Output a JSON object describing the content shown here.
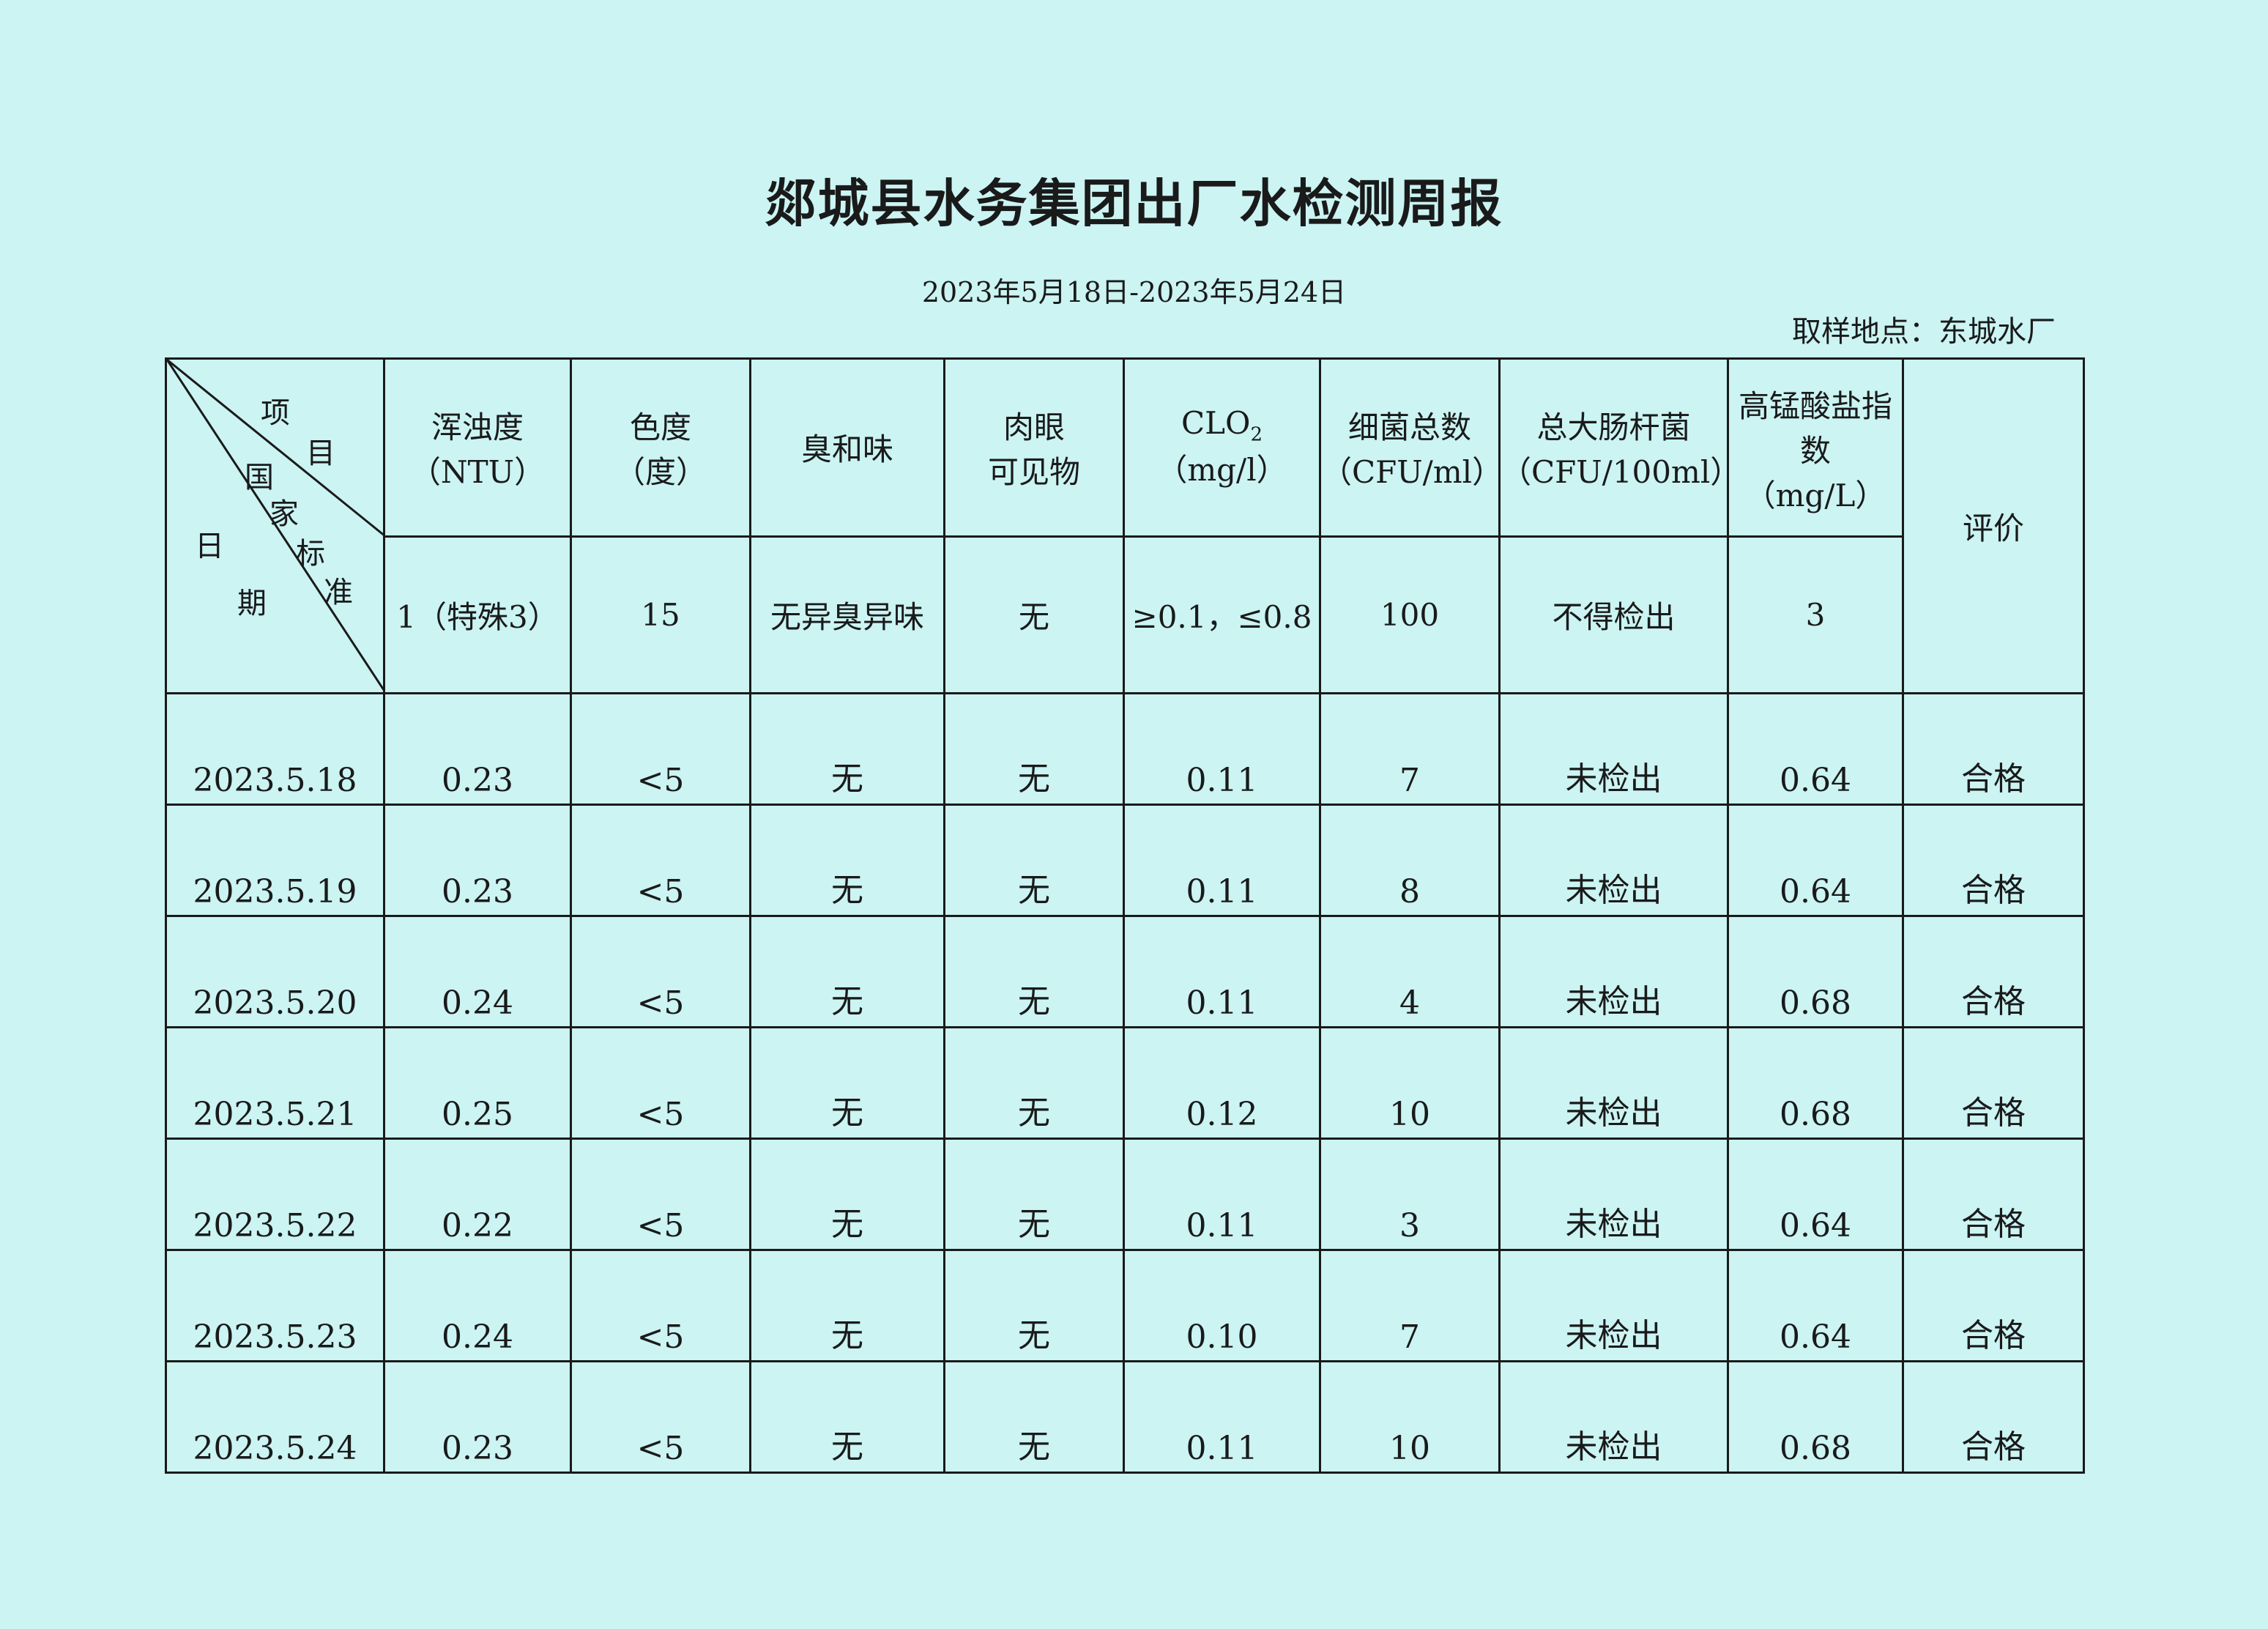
{
  "title": "郯城县水务集团出厂水检测周报",
  "subtitle": "2023年5月18日-2023年5月24日",
  "location": "取样地点：东城水厂",
  "corner": {
    "item1": "项",
    "item2": "目",
    "std1": "国",
    "std2": "家",
    "std3": "标",
    "std4": "准",
    "date1": "日",
    "date2": "期"
  },
  "columns": [
    {
      "name": "浑浊度",
      "unit": "（NTU）",
      "standard": "1（特殊3）"
    },
    {
      "name": "色度",
      "unit": "（度）",
      "standard": "15"
    },
    {
      "name": "臭和味",
      "unit": "",
      "standard": "无异臭异味"
    },
    {
      "name": "肉眼",
      "unit": "可见物",
      "standard": "无"
    },
    {
      "name": "CLO",
      "sub": "2",
      "unit": "（mg/l）",
      "standard": "≥0.1，≤0.8"
    },
    {
      "name": "细菌总数",
      "unit": "（CFU/ml）",
      "standard": "100"
    },
    {
      "name": "总大肠杆菌",
      "unit": "（CFU/100ml）",
      "standard": "不得检出"
    },
    {
      "name": "高锰酸盐指",
      "unit": "数",
      "unit2": "（mg/L）",
      "standard": "3"
    }
  ],
  "evaluation_header": "评价",
  "rows": [
    [
      "2023.5.18",
      "0.23",
      "<5",
      "无",
      "无",
      "0.11",
      "7",
      "未检出",
      "0.64",
      "合格"
    ],
    [
      "2023.5.19",
      "0.23",
      "<5",
      "无",
      "无",
      "0.11",
      "8",
      "未检出",
      "0.64",
      "合格"
    ],
    [
      "2023.5.20",
      "0.24",
      "<5",
      "无",
      "无",
      "0.11",
      "4",
      "未检出",
      "0.68",
      "合格"
    ],
    [
      "2023.5.21",
      "0.25",
      "<5",
      "无",
      "无",
      "0.12",
      "10",
      "未检出",
      "0.68",
      "合格"
    ],
    [
      "2023.5.22",
      "0.22",
      "<5",
      "无",
      "无",
      "0.11",
      "3",
      "未检出",
      "0.64",
      "合格"
    ],
    [
      "2023.5.23",
      "0.24",
      "<5",
      "无",
      "无",
      "0.10",
      "7",
      "未检出",
      "0.64",
      "合格"
    ],
    [
      "2023.5.24",
      "0.23",
      "<5",
      "无",
      "无",
      "0.11",
      "10",
      "未检出",
      "0.68",
      "合格"
    ]
  ]
}
